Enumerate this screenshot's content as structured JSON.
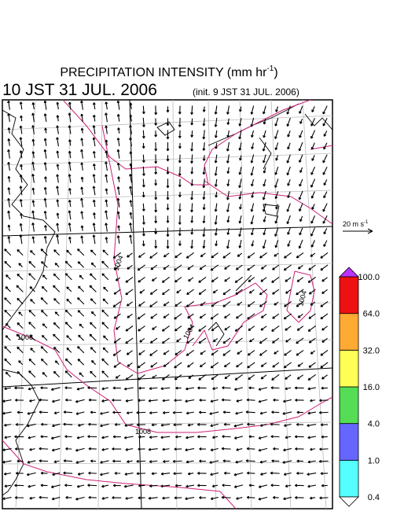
{
  "header": {
    "title": {
      "text": "PRECIPITATION INTENSITY (mm hr",
      "superscript": "-1",
      "close": ")"
    },
    "valid_time": "10 JST 31 JUL. 2006",
    "init_time": "(init. 9 JST 31 JUL. 2006)"
  },
  "vector_legend": {
    "text": "20 m s",
    "superscript": "-1"
  },
  "colorbar": {
    "labels": [
      "0.4",
      "1.0",
      "4.0",
      "16.0",
      "32.0",
      "64.0",
      "100.0"
    ],
    "colors": [
      "#55ffff",
      "#6666ff",
      "#55dd55",
      "#ffff55",
      "#ffaa33",
      "#ee1111"
    ],
    "over_color": "#bb33ff"
  },
  "contour_labels": [
    "1004",
    "1004",
    "1004",
    "1008",
    "1008"
  ]
}
